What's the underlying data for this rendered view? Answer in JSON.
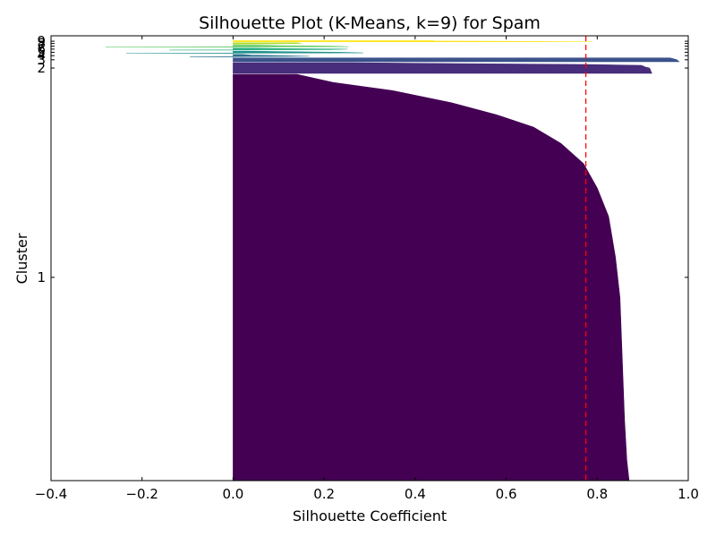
{
  "chart_data": {
    "type": "bar",
    "title": "Silhouette Plot (K-Means, k=9) for Spam",
    "xlabel": "Silhouette Coefficient",
    "ylabel": "Cluster",
    "xlim": [
      -0.4,
      1.0
    ],
    "x_ticks": [
      "−0.4",
      "−0.2",
      "0.0",
      "0.2",
      "0.4",
      "0.6",
      "0.8",
      "1.0"
    ],
    "x_tick_values": [
      -0.4,
      -0.2,
      0.0,
      0.2,
      0.4,
      0.6,
      0.8,
      1.0
    ],
    "average_silhouette": 0.775,
    "average_line_color": "#ff0000",
    "grid": false,
    "legend": "none",
    "clusters": [
      {
        "label": "1",
        "color": "#440154",
        "size": 4180,
        "profile": [
          [
            0.0,
            0.87
          ],
          [
            0.05,
            0.865
          ],
          [
            0.15,
            0.86
          ],
          [
            0.3,
            0.855
          ],
          [
            0.45,
            0.85
          ],
          [
            0.55,
            0.84
          ],
          [
            0.65,
            0.825
          ],
          [
            0.72,
            0.8
          ],
          [
            0.78,
            0.77
          ],
          [
            0.83,
            0.72
          ],
          [
            0.87,
            0.66
          ],
          [
            0.9,
            0.58
          ],
          [
            0.93,
            0.48
          ],
          [
            0.96,
            0.35
          ],
          [
            0.98,
            0.22
          ],
          [
            1.0,
            0.14
          ]
        ]
      },
      {
        "label": "2",
        "color": "#472d7b",
        "size": 110,
        "profile": [
          [
            0.0,
            0.92
          ],
          [
            0.5,
            0.915
          ],
          [
            0.6,
            0.905
          ],
          [
            0.8,
            0.895
          ],
          [
            0.98,
            0.265
          ],
          [
            1.0,
            0.26
          ]
        ]
      },
      {
        "label": "3",
        "color": "#3b528b",
        "size": 40,
        "profile": [
          [
            0.0,
            0.98
          ],
          [
            0.5,
            0.975
          ],
          [
            1.0,
            0.96
          ]
        ]
      },
      {
        "label": "4",
        "color": "#2c728e",
        "size": 25,
        "profile": [
          [
            0.0,
            -0.095
          ],
          [
            0.3,
            0.22
          ],
          [
            0.6,
            0.05
          ],
          [
            1.0,
            0.02
          ]
        ]
      },
      {
        "label": "5",
        "color": "#21918c",
        "size": 25,
        "profile": [
          [
            0.0,
            -0.235
          ],
          [
            0.3,
            0.39
          ],
          [
            0.6,
            0.16
          ],
          [
            1.0,
            0.03
          ]
        ]
      },
      {
        "label": "6",
        "color": "#28ae80",
        "size": 20,
        "profile": [
          [
            0.0,
            -0.14
          ],
          [
            0.35,
            0.35
          ],
          [
            0.7,
            0.12
          ],
          [
            1.0,
            0.04
          ]
        ]
      },
      {
        "label": "7",
        "color": "#5ec962",
        "size": 20,
        "profile": [
          [
            0.0,
            -0.28
          ],
          [
            0.3,
            0.36
          ],
          [
            0.6,
            0.14
          ],
          [
            1.0,
            0.05
          ]
        ]
      },
      {
        "label": "8",
        "color": "#addc30",
        "size": 15,
        "profile": [
          [
            0.0,
            0.0
          ],
          [
            0.5,
            0.15
          ],
          [
            1.0,
            0.14
          ]
        ]
      },
      {
        "label": "9",
        "color": "#fde725",
        "size": 12,
        "profile": [
          [
            0.0,
            0.79
          ],
          [
            0.4,
            0.6
          ],
          [
            0.7,
            0.44
          ],
          [
            1.0,
            0.44
          ]
        ]
      }
    ]
  }
}
